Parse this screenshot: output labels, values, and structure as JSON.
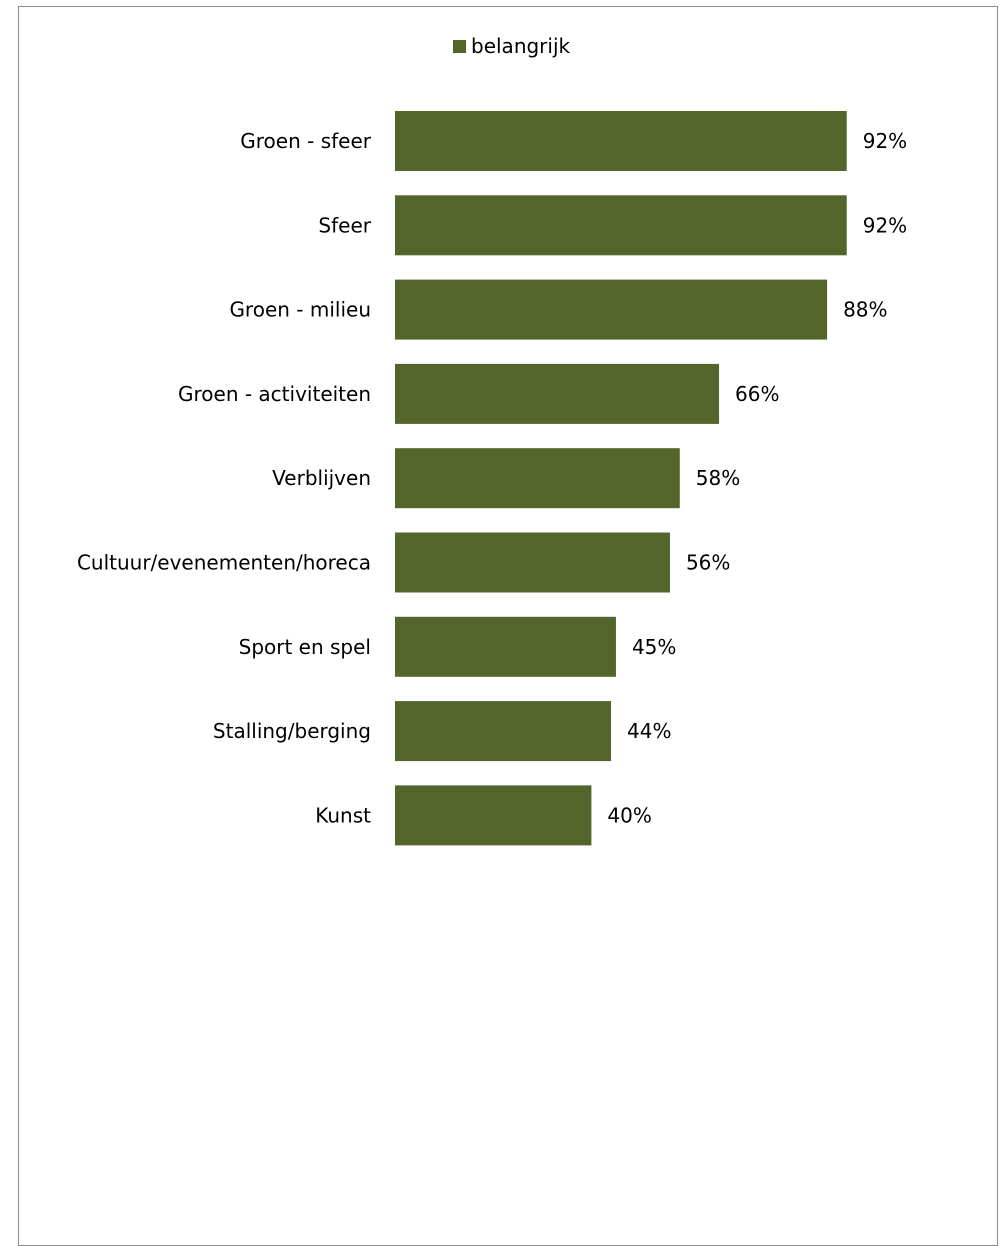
{
  "chart_data": {
    "type": "bar",
    "orientation": "horizontal",
    "title": "",
    "xlabel": "",
    "ylabel": "",
    "categories": [
      "Groen - sfeer",
      "Sfeer",
      "Groen - milieu",
      "Groen - activiteiten",
      "Verblijven",
      "Cultuur/evenementen/horeca",
      "Sport en spel",
      "Stalling/berging",
      "Kunst"
    ],
    "series": [
      {
        "name": "belangrijk",
        "color": "#53652b",
        "values": [
          92,
          92,
          88,
          66,
          58,
          56,
          45,
          44,
          40
        ],
        "labels": [
          "92%",
          "92%",
          "88%",
          "66%",
          "58%",
          "56%",
          "45%",
          "44%",
          "40%"
        ]
      }
    ],
    "xlim": [
      0,
      100
    ],
    "grid": false,
    "legend": "top-center"
  }
}
